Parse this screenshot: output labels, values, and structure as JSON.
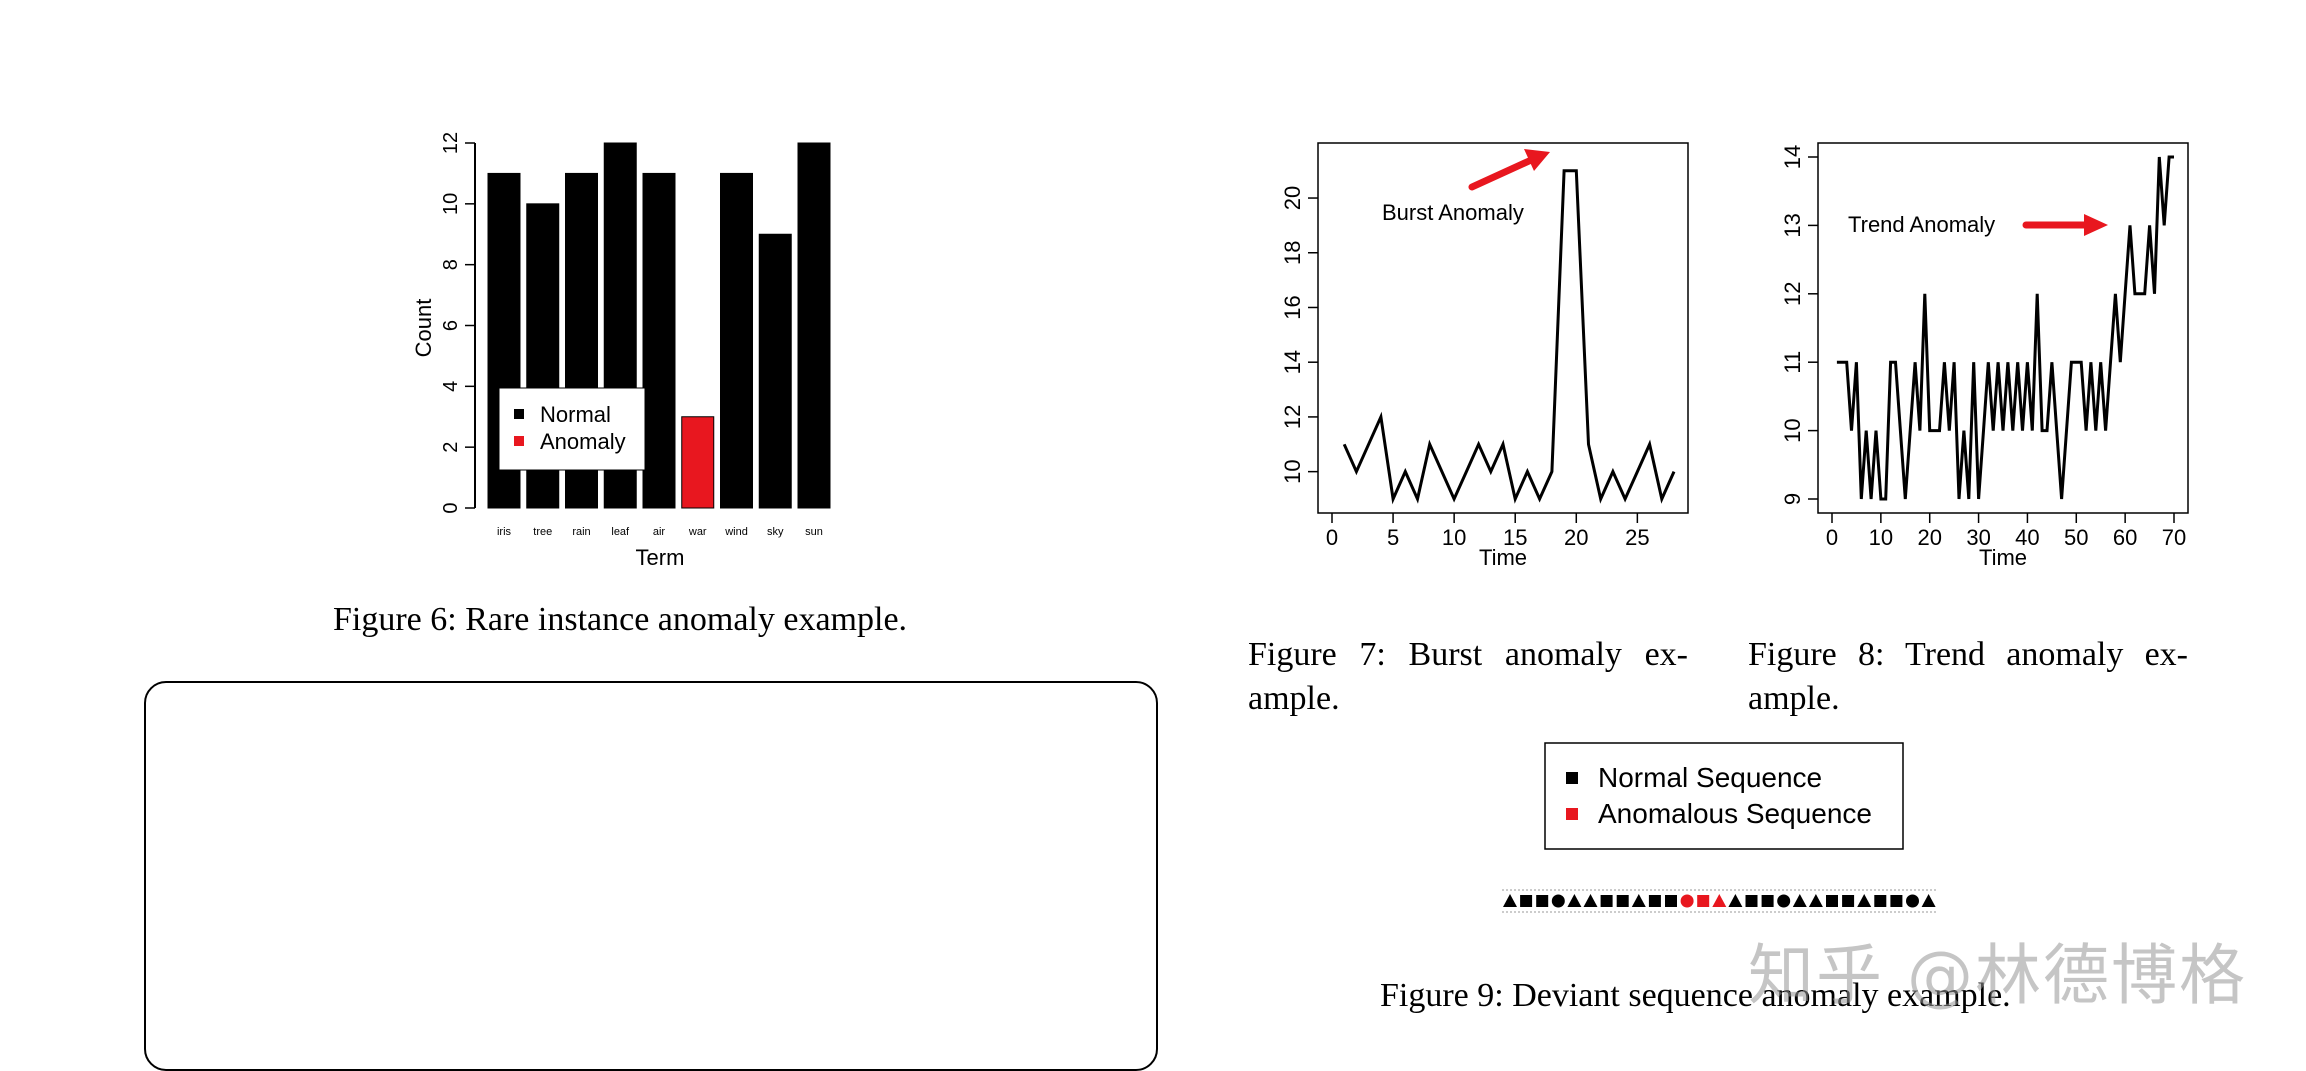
{
  "figure6": {
    "caption": "Figure 6: Rare instance anomaly example.",
    "legend": [
      {
        "label": "Normal",
        "color": "#000000"
      },
      {
        "label": "Anomaly",
        "color": "#e8171f"
      }
    ]
  },
  "figure7": {
    "caption_line1": "Figure 7: Burst anomaly ex-",
    "caption_line2": "ample.",
    "annotation": "Burst Anomaly"
  },
  "figure8": {
    "caption_line1": "Figure 8: Trend anomaly ex-",
    "caption_line2": "ample.",
    "annotation": "Trend Anomaly"
  },
  "figure9": {
    "caption": "Figure 9: Deviant sequence anomaly example.",
    "legend": [
      {
        "label": "Normal Sequence",
        "color": "#000000"
      },
      {
        "label": "Anomalous Sequence",
        "color": "#e8171f"
      }
    ],
    "sequence": [
      {
        "shape": "triangle",
        "anomalous": false
      },
      {
        "shape": "square",
        "anomalous": false
      },
      {
        "shape": "square",
        "anomalous": false
      },
      {
        "shape": "circle",
        "anomalous": false
      },
      {
        "shape": "triangle",
        "anomalous": false
      },
      {
        "shape": "triangle",
        "anomalous": false
      },
      {
        "shape": "square",
        "anomalous": false
      },
      {
        "shape": "square",
        "anomalous": false
      },
      {
        "shape": "triangle",
        "anomalous": false
      },
      {
        "shape": "square",
        "anomalous": false
      },
      {
        "shape": "square",
        "anomalous": false
      },
      {
        "shape": "circle",
        "anomalous": true
      },
      {
        "shape": "square",
        "anomalous": true
      },
      {
        "shape": "triangle",
        "anomalous": true
      },
      {
        "shape": "triangle",
        "anomalous": false
      },
      {
        "shape": "square",
        "anomalous": false
      },
      {
        "shape": "square",
        "anomalous": false
      },
      {
        "shape": "circle",
        "anomalous": false
      },
      {
        "shape": "triangle",
        "anomalous": false
      },
      {
        "shape": "triangle",
        "anomalous": false
      },
      {
        "shape": "square",
        "anomalous": false
      },
      {
        "shape": "square",
        "anomalous": false
      },
      {
        "shape": "triangle",
        "anomalous": false
      },
      {
        "shape": "square",
        "anomalous": false
      },
      {
        "shape": "square",
        "anomalous": false
      },
      {
        "shape": "circle",
        "anomalous": false
      },
      {
        "shape": "triangle",
        "anomalous": false
      }
    ]
  },
  "watermark": "知乎 @林德博格",
  "chart_data": [
    {
      "type": "bar",
      "categories": [
        "iris",
        "tree",
        "rain",
        "leaf",
        "air",
        "war",
        "wind",
        "sky",
        "sun"
      ],
      "values": [
        11,
        10,
        11,
        12,
        11,
        3,
        11,
        9,
        12
      ],
      "colors": [
        "#000000",
        "#000000",
        "#000000",
        "#000000",
        "#000000",
        "#e8171f",
        "#000000",
        "#000000",
        "#000000"
      ],
      "xlabel": "Term",
      "ylabel": "Count",
      "ylim": [
        0,
        12
      ],
      "yticks": [
        0,
        2,
        4,
        6,
        8,
        10,
        12
      ],
      "legend_position": "lower-left"
    },
    {
      "type": "line",
      "x": [
        1,
        2,
        3,
        4,
        5,
        6,
        7,
        8,
        9,
        10,
        11,
        12,
        13,
        14,
        15,
        16,
        17,
        18,
        19,
        20,
        21,
        22,
        23,
        24,
        25,
        26,
        27,
        28
      ],
      "y": [
        11,
        10,
        11,
        12,
        9,
        10,
        9,
        11,
        10,
        9,
        10,
        11,
        10,
        11,
        9,
        10,
        9,
        10,
        21,
        21,
        11,
        9,
        10,
        9,
        10,
        11,
        9,
        10
      ],
      "xlabel": "Time",
      "ylabel": "",
      "xlim": [
        0,
        28
      ],
      "ylim": [
        9,
        21.5
      ],
      "xticks": [
        0,
        5,
        10,
        15,
        20,
        25
      ],
      "yticks": [
        10,
        12,
        14,
        16,
        18,
        20
      ],
      "annotation": {
        "text": "Burst Anomaly",
        "target": [
          19,
          21
        ]
      }
    },
    {
      "type": "line",
      "x": [
        1,
        2,
        3,
        4,
        5,
        6,
        7,
        8,
        9,
        10,
        11,
        12,
        13,
        14,
        15,
        16,
        17,
        18,
        19,
        20,
        21,
        22,
        23,
        24,
        25,
        26,
        27,
        28,
        29,
        30,
        31,
        32,
        33,
        34,
        35,
        36,
        37,
        38,
        39,
        40,
        41,
        42,
        43,
        44,
        45,
        46,
        47,
        48,
        49,
        50,
        51,
        52,
        53,
        54,
        55,
        56,
        57,
        58,
        59,
        60,
        61,
        62,
        63,
        64,
        65,
        66,
        67,
        68,
        69,
        70
      ],
      "y": [
        11,
        11,
        11,
        10,
        11,
        9,
        10,
        9,
        10,
        9,
        9,
        11,
        11,
        10,
        9,
        10,
        11,
        10,
        12,
        10,
        10,
        10,
        11,
        10,
        11,
        9,
        10,
        9,
        11,
        9,
        10,
        11,
        10,
        11,
        10,
        11,
        10,
        11,
        10,
        11,
        10,
        12,
        10,
        10,
        11,
        10,
        9,
        10,
        11,
        11,
        11,
        10,
        11,
        10,
        11,
        10,
        11,
        12,
        11,
        12,
        13,
        12,
        12,
        12,
        13,
        12,
        14,
        13,
        14,
        14
      ],
      "xlabel": "Time",
      "ylabel": "",
      "xlim": [
        0,
        70
      ],
      "ylim": [
        9,
        14
      ],
      "xticks": [
        0,
        10,
        20,
        30,
        40,
        50,
        60,
        70
      ],
      "yticks": [
        9,
        10,
        11,
        12,
        13,
        14
      ],
      "annotation": {
        "text": "Trend Anomaly",
        "target": [
          58,
          13
        ]
      }
    }
  ]
}
